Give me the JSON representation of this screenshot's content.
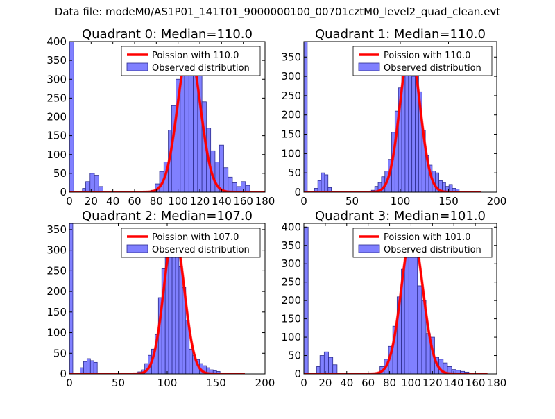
{
  "figure": {
    "suptitle": "Data file: modeM0/AS1P01_141T01_9000000100_00701cztM0_level2_quad_clean.evt",
    "colors": {
      "hist_fill": "#8080ff",
      "hist_edge": "#2d2d8f",
      "fit_line": "#ff0000",
      "axes": "#000000"
    }
  },
  "chart_data": [
    {
      "type": "bar",
      "title": "Quadrant 0: Median=110.0",
      "xlim": [
        0,
        180
      ],
      "ylim": [
        0,
        400
      ],
      "xticks": [
        0,
        20,
        40,
        60,
        80,
        100,
        120,
        140,
        160,
        180
      ],
      "yticks": [
        0,
        50,
        100,
        150,
        200,
        250,
        300,
        350,
        400
      ],
      "legend": [
        "Poission with 110.0",
        "Observed distribution"
      ],
      "legend_loc": "upper-right",
      "fit_mean": 110.0,
      "fit_peak": 380,
      "hist": {
        "bins": [
          [
            0,
            4,
            400
          ],
          [
            12,
            15,
            10
          ],
          [
            15,
            19,
            28
          ],
          [
            19,
            23,
            50
          ],
          [
            23,
            27,
            45
          ],
          [
            27,
            31,
            15
          ],
          [
            75,
            79,
            5
          ],
          [
            79,
            83,
            22
          ],
          [
            83,
            87,
            55
          ],
          [
            87,
            91,
            80
          ],
          [
            91,
            94,
            165
          ],
          [
            94,
            98,
            230
          ],
          [
            98,
            102,
            300
          ],
          [
            102,
            106,
            355
          ],
          [
            106,
            110,
            330
          ],
          [
            110,
            114,
            340
          ],
          [
            114,
            118,
            310
          ],
          [
            118,
            122,
            330
          ],
          [
            122,
            126,
            240
          ],
          [
            126,
            130,
            170
          ],
          [
            130,
            134,
            110
          ],
          [
            134,
            138,
            80
          ],
          [
            138,
            142,
            125
          ],
          [
            142,
            146,
            65
          ],
          [
            146,
            150,
            40
          ],
          [
            150,
            154,
            25
          ],
          [
            154,
            158,
            15
          ],
          [
            158,
            162,
            28
          ],
          [
            162,
            166,
            18
          ]
        ]
      }
    },
    {
      "type": "bar",
      "title": "Quadrant 1: Median=110.0",
      "xlim": [
        0,
        200
      ],
      "ylim": [
        0,
        390
      ],
      "xticks": [
        0,
        50,
        100,
        150,
        200
      ],
      "yticks": [
        0,
        50,
        100,
        150,
        200,
        250,
        300,
        350
      ],
      "legend": [
        "Poission with 110.0",
        "Observed distribution"
      ],
      "legend_loc": "upper-right",
      "fit_mean": 110.0,
      "fit_peak": 370,
      "hist": {
        "bins": [
          [
            0,
            3.5,
            390
          ],
          [
            11,
            14.5,
            10
          ],
          [
            14.5,
            18,
            30
          ],
          [
            18,
            21.5,
            50
          ],
          [
            21.5,
            25,
            45
          ],
          [
            25,
            28.5,
            12
          ],
          [
            70,
            73.5,
            5
          ],
          [
            73.5,
            77,
            15
          ],
          [
            77,
            80.5,
            25
          ],
          [
            80.5,
            84,
            40
          ],
          [
            84,
            87.5,
            55
          ],
          [
            87.5,
            91,
            85
          ],
          [
            91,
            94.5,
            155
          ],
          [
            94.5,
            98,
            210
          ],
          [
            98,
            101.5,
            270
          ],
          [
            101.5,
            105,
            310
          ],
          [
            105,
            108.5,
            335
          ],
          [
            108.5,
            112,
            345
          ],
          [
            112,
            115.5,
            300
          ],
          [
            115.5,
            119,
            345
          ],
          [
            119,
            122.5,
            260
          ],
          [
            122.5,
            126,
            160
          ],
          [
            126,
            129.5,
            95
          ],
          [
            129.5,
            133,
            70
          ],
          [
            133,
            136.5,
            55
          ],
          [
            136.5,
            140,
            50
          ],
          [
            140,
            143.5,
            30
          ],
          [
            143.5,
            147,
            25
          ],
          [
            147,
            150.5,
            15
          ],
          [
            150.5,
            154,
            20
          ],
          [
            154,
            157.5,
            10
          ],
          [
            157.5,
            161,
            8
          ]
        ]
      }
    },
    {
      "type": "bar",
      "title": "Quadrant 2: Median=107.0",
      "xlim": [
        0,
        200
      ],
      "ylim": [
        0,
        365
      ],
      "xticks": [
        0,
        50,
        100,
        150,
        200
      ],
      "yticks": [
        0,
        50,
        100,
        150,
        200,
        250,
        300,
        350
      ],
      "legend": [
        "Poission with 107.0",
        "Observed distribution"
      ],
      "legend_loc": "upper-right",
      "fit_mean": 107.0,
      "fit_peak": 345,
      "hist": {
        "bins": [
          [
            0,
            3.5,
            365
          ],
          [
            11,
            14.5,
            15
          ],
          [
            14.5,
            18,
            30
          ],
          [
            18,
            21.5,
            37
          ],
          [
            21.5,
            25,
            32
          ],
          [
            25,
            28.5,
            28
          ],
          [
            70,
            73.5,
            5
          ],
          [
            73.5,
            77,
            10
          ],
          [
            77,
            80.5,
            25
          ],
          [
            80.5,
            84,
            45
          ],
          [
            84,
            87.5,
            60
          ],
          [
            87.5,
            91,
            95
          ],
          [
            91,
            94.5,
            185
          ],
          [
            94.5,
            98,
            255
          ],
          [
            98,
            101.5,
            290
          ],
          [
            101.5,
            105,
            305
          ],
          [
            105,
            108.5,
            340
          ],
          [
            108.5,
            112,
            320
          ],
          [
            112,
            115.5,
            260
          ],
          [
            115.5,
            119,
            210
          ],
          [
            119,
            122.5,
            130
          ],
          [
            122.5,
            126,
            60
          ],
          [
            126,
            129.5,
            45
          ],
          [
            129.5,
            133,
            35
          ],
          [
            133,
            136.5,
            25
          ],
          [
            136.5,
            140,
            20
          ],
          [
            140,
            143.5,
            15
          ],
          [
            143.5,
            147,
            10
          ],
          [
            147,
            150.5,
            8
          ],
          [
            150.5,
            154,
            6
          ]
        ]
      }
    },
    {
      "type": "bar",
      "title": "Quadrant 3: Median=101.0",
      "xlim": [
        0,
        180
      ],
      "ylim": [
        0,
        410
      ],
      "xticks": [
        0,
        20,
        40,
        60,
        80,
        100,
        120,
        140,
        160,
        180
      ],
      "yticks": [
        0,
        50,
        100,
        150,
        200,
        250,
        300,
        350,
        400
      ],
      "legend": [
        "Poission with 101.0",
        "Observed distribution"
      ],
      "legend_loc": "upper-right",
      "fit_mean": 101.0,
      "fit_peak": 385,
      "hist": {
        "bins": [
          [
            0,
            4,
            400
          ],
          [
            12,
            15,
            20
          ],
          [
            15,
            19,
            50
          ],
          [
            19,
            23,
            60
          ],
          [
            23,
            27,
            45
          ],
          [
            27,
            31,
            25
          ],
          [
            71,
            75,
            20
          ],
          [
            75,
            79,
            40
          ],
          [
            79,
            83,
            75
          ],
          [
            83,
            87,
            130
          ],
          [
            87,
            91,
            210
          ],
          [
            91,
            94,
            285
          ],
          [
            94,
            98,
            375
          ],
          [
            98,
            102,
            340
          ],
          [
            102,
            106,
            360
          ],
          [
            106,
            110,
            240
          ],
          [
            110,
            114,
            200
          ],
          [
            114,
            118,
            110
          ],
          [
            118,
            122,
            100
          ],
          [
            122,
            126,
            45
          ],
          [
            126,
            130,
            40
          ],
          [
            130,
            134,
            30
          ],
          [
            134,
            138,
            20
          ],
          [
            138,
            142,
            12
          ],
          [
            142,
            146,
            10
          ],
          [
            146,
            150,
            7
          ],
          [
            150,
            154,
            5
          ]
        ]
      }
    }
  ]
}
